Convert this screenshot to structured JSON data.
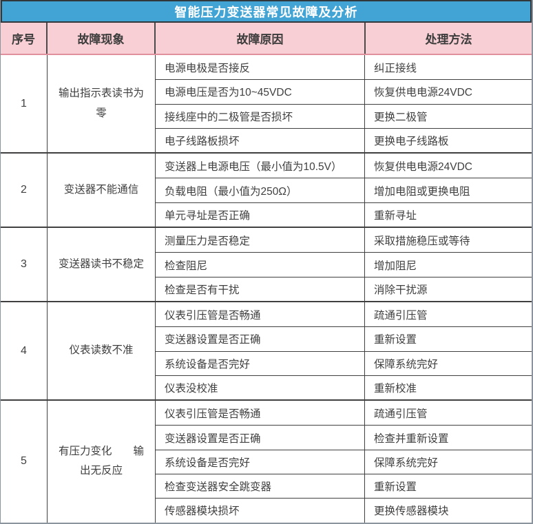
{
  "title": "智能压力变送器常见故障及分析",
  "columns": [
    "序号",
    "故障现象",
    "故障原因",
    "处理方法"
  ],
  "colors": {
    "title_bar_bg": "#41a4d4",
    "title_bar_border": "#32373c",
    "header_bg": "#f8cfd4",
    "header_border": "#e0909c",
    "grid_line": "#3f3f3f",
    "frame_border": "#8b949c"
  },
  "groups": [
    {
      "no": "1",
      "phenomenon": "输出指示表读书为零",
      "rows": [
        {
          "cause": "电源电极是否接反",
          "method": "纠正接线"
        },
        {
          "cause": "电源电压是否为10~45VDC",
          "method": "恢复供电电源24VDC"
        },
        {
          "cause": "接线座中的二极管是否损坏",
          "method": "更换二极管"
        },
        {
          "cause": "电子线路板损坏",
          "method": "更换电子线路板"
        }
      ]
    },
    {
      "no": "2",
      "phenomenon": "变送器不能通信",
      "rows": [
        {
          "cause": "变送器上电源电压（最小值为10.5V）",
          "method": "恢复供电电源24VDC"
        },
        {
          "cause": "负载电阻（最小值为250Ω）",
          "method": "增加电阻或更换电阻"
        },
        {
          "cause": "单元寻址是否正确",
          "method": "重新寻址"
        }
      ]
    },
    {
      "no": "3",
      "phenomenon": "变送器读书不稳定",
      "rows": [
        {
          "cause": "测量压力是否稳定",
          "method": "采取措施稳压或等待"
        },
        {
          "cause": "检查阻尼",
          "method": "增加阻尼"
        },
        {
          "cause": "检查是否有干扰",
          "method": "消除干扰源"
        }
      ]
    },
    {
      "no": "4",
      "phenomenon": "仪表读数不准",
      "rows": [
        {
          "cause": "仪表引压管是否畅通",
          "method": "疏通引压管"
        },
        {
          "cause": "变送器设置是否正确",
          "method": "重新设置"
        },
        {
          "cause": "系统设备是否完好",
          "method": "保障系统完好"
        },
        {
          "cause": "仪表没校准",
          "method": "重新校准"
        }
      ]
    },
    {
      "no": "5",
      "phenomenon": "有压力变化　　输出无反应",
      "rows": [
        {
          "cause": "仪表引压管是否畅通",
          "method": "疏通引压管"
        },
        {
          "cause": "变送器设置是否正确",
          "method": "检查并重新设置"
        },
        {
          "cause": "系统设备是否完好",
          "method": "保障系统完好"
        },
        {
          "cause": "检查变送器安全跳变器",
          "method": "重新设置"
        },
        {
          "cause": "传感器模块损坏",
          "method": "更换传感器模块"
        }
      ]
    }
  ]
}
